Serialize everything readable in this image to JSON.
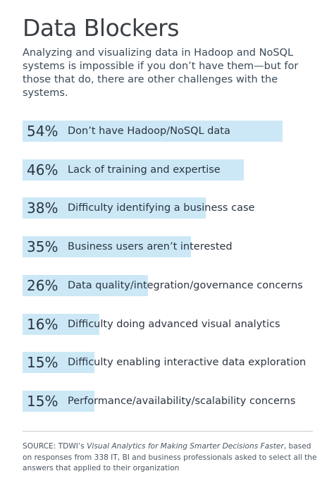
{
  "header": {
    "title": "Data Blockers",
    "subtitle": "Analyzing and visualizing data in Hadoop and NoSQL systems is impossible if you don’t have them—but for those that do, there are other challenges with the systems."
  },
  "chart_data": {
    "type": "bar",
    "orientation": "horizontal",
    "unit": "%",
    "categories": [
      "Don’t have Hadoop/NoSQL data",
      "Lack of training and expertise",
      "Difficulty identifying a business case",
      "Business users aren’t interested",
      "Data quality/integration/governance concerns",
      "Difficulty doing advanced visual analytics",
      "Difficulty enabling interactive data exploration",
      "Performance/availability/scalability concerns"
    ],
    "values": [
      54,
      46,
      38,
      35,
      26,
      16,
      15,
      15
    ],
    "value_labels": [
      "54%",
      "46%",
      "38%",
      "35%",
      "26%",
      "16%",
      "15%",
      "15%"
    ],
    "xlim": [
      0,
      100
    ],
    "bar_color": "#cce8f6",
    "grid": false
  },
  "footer": {
    "source_prefix": "SOURCE: TDWI’s ",
    "source_title": "Visual Analytics for Making Smarter Decisions Faster",
    "source_suffix": ", based on responses from 338 IT, BI and business professionals asked to select all the answers that applied to their organization"
  }
}
